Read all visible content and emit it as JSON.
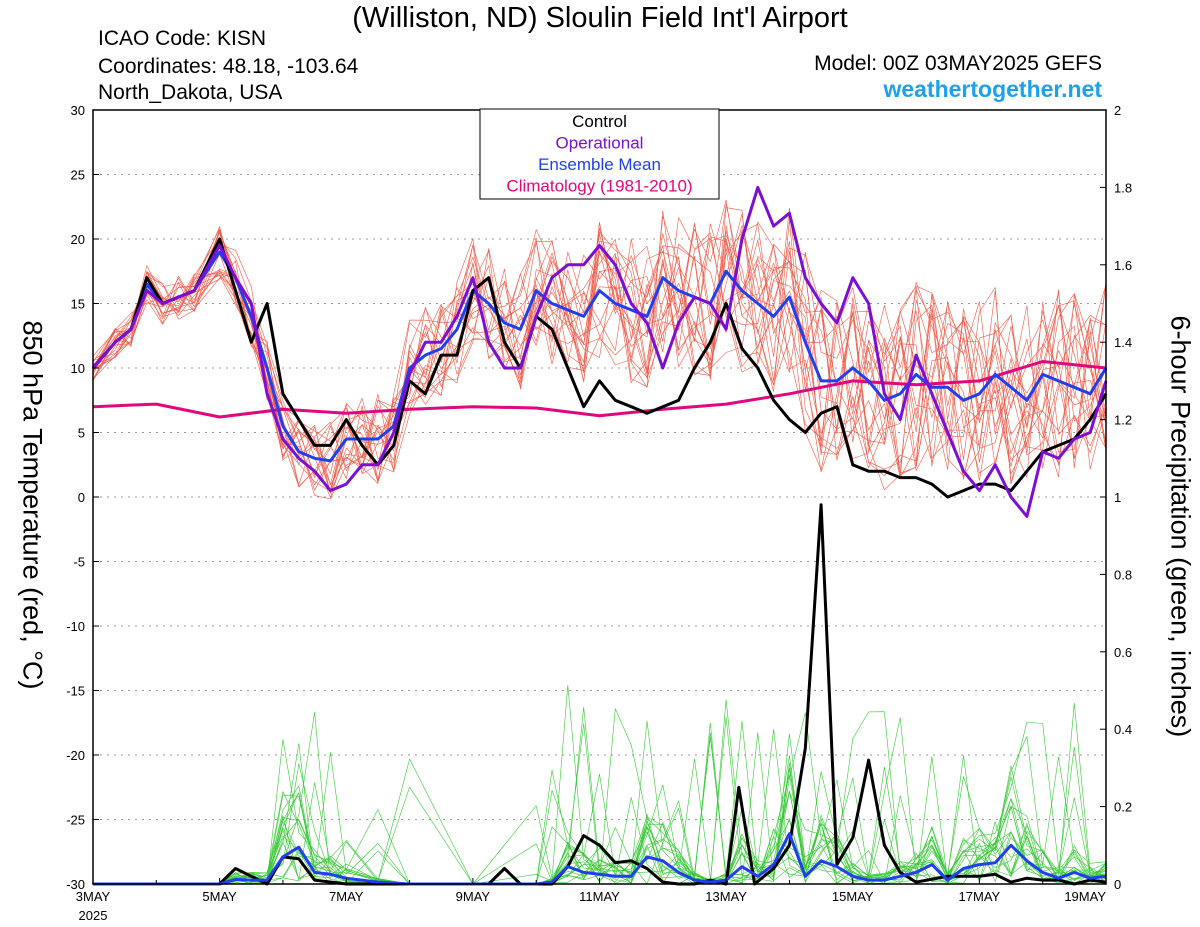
{
  "header": {
    "title": "(Williston, ND) Sloulin Field Int'l Airport",
    "icao": "ICAO Code: KISN",
    "coordinates": "Coordinates: 48.18, -103.64",
    "region": "North_Dakota, USA",
    "model": "Model: 00Z 03MAY2025 GEFS",
    "site": "weathertogether.net"
  },
  "colors": {
    "control": "#000000",
    "operational": "#7b0fd6",
    "ensemble_mean": "#2040f0",
    "climatology": "#e2077e",
    "members_temp": "#f05a4a",
    "members_precip": "#37c837",
    "site": "#1ea0f0"
  },
  "chart_data": {
    "type": "line",
    "title": "(Williston, ND) Sloulin Field Int'l Airport",
    "ylabel": "850 hPa Temperature (red, °C)",
    "y2label": "6-hour Precipitation (green, inches)",
    "xlim": [
      0,
      16
    ],
    "ylim": [
      -30,
      30
    ],
    "y2lim": [
      0,
      2
    ],
    "y_ticks": [
      30,
      25,
      20,
      15,
      10,
      5,
      0,
      -5,
      -10,
      -15,
      -20,
      -25,
      -30
    ],
    "y2_ticks": [
      2,
      1.8,
      1.6,
      1.4,
      1.2,
      1,
      0.8,
      0.6,
      0.4,
      0.2,
      0
    ],
    "x_ticks": [
      {
        "x": 0,
        "label": "3MAY",
        "sub": "2025"
      },
      {
        "x": 2,
        "label": "5MAY"
      },
      {
        "x": 4,
        "label": "7MAY"
      },
      {
        "x": 6,
        "label": "9MAY"
      },
      {
        "x": 8,
        "label": "11MAY"
      },
      {
        "x": 10,
        "label": "13MAY"
      },
      {
        "x": 12,
        "label": "15MAY"
      },
      {
        "x": 14,
        "label": "17MAY"
      },
      {
        "x": 16,
        "label": "19MAY"
      }
    ],
    "grid": true,
    "legend": {
      "placement": "top-center",
      "entries": [
        {
          "label": "Control",
          "color": "#000000"
        },
        {
          "label": "Operational",
          "color": "#7b0fd6"
        },
        {
          "label": "Ensemble Mean",
          "color": "#2040f0"
        },
        {
          "label": "Climatology (1981-2010)",
          "color": "#e2077e"
        }
      ]
    },
    "temperature": {
      "control": [
        [
          0,
          10
        ],
        [
          0.35,
          12
        ],
        [
          0.6,
          13
        ],
        [
          0.85,
          17
        ],
        [
          1.1,
          15
        ],
        [
          1.35,
          15.5
        ],
        [
          1.6,
          16
        ],
        [
          2,
          20
        ],
        [
          2.25,
          16
        ],
        [
          2.5,
          12
        ],
        [
          2.75,
          15
        ],
        [
          3,
          8
        ],
        [
          3.25,
          6
        ],
        [
          3.5,
          4
        ],
        [
          3.75,
          4
        ],
        [
          4,
          6
        ],
        [
          4.25,
          4
        ],
        [
          4.5,
          2.5
        ],
        [
          4.75,
          4
        ],
        [
          5,
          9
        ],
        [
          5.25,
          8
        ],
        [
          5.5,
          11
        ],
        [
          5.75,
          11
        ],
        [
          6,
          16
        ],
        [
          6.25,
          17
        ],
        [
          6.5,
          12
        ],
        [
          6.75,
          10
        ],
        [
          7,
          14
        ],
        [
          7.25,
          13
        ],
        [
          7.5,
          10
        ],
        [
          7.75,
          7
        ],
        [
          8,
          9
        ],
        [
          8.25,
          7.5
        ],
        [
          8.5,
          7
        ],
        [
          8.75,
          6.5
        ],
        [
          9,
          7
        ],
        [
          9.25,
          7.5
        ],
        [
          9.5,
          10
        ],
        [
          9.75,
          12
        ],
        [
          10,
          15
        ],
        [
          10.25,
          11.5
        ],
        [
          10.5,
          10
        ],
        [
          10.75,
          7.5
        ],
        [
          11,
          6
        ],
        [
          11.25,
          5
        ],
        [
          11.5,
          6.5
        ],
        [
          11.75,
          7
        ],
        [
          12,
          2.5
        ],
        [
          12.25,
          2
        ],
        [
          12.5,
          2
        ],
        [
          12.75,
          1.5
        ],
        [
          13,
          1.5
        ],
        [
          13.25,
          1
        ],
        [
          13.5,
          0
        ],
        [
          13.75,
          0.5
        ],
        [
          14,
          1
        ],
        [
          14.25,
          1
        ],
        [
          14.5,
          0.5
        ],
        [
          14.75,
          2
        ],
        [
          15,
          3.5
        ],
        [
          15.25,
          4
        ],
        [
          15.5,
          4.5
        ],
        [
          15.75,
          6
        ],
        [
          16,
          8
        ]
      ],
      "operational": [
        [
          0,
          10
        ],
        [
          0.35,
          12
        ],
        [
          0.6,
          13
        ],
        [
          0.85,
          16
        ],
        [
          1.1,
          15
        ],
        [
          1.35,
          15.5
        ],
        [
          1.6,
          16
        ],
        [
          2,
          19.5
        ],
        [
          2.25,
          17
        ],
        [
          2.5,
          15
        ],
        [
          2.75,
          8
        ],
        [
          3,
          4.5
        ],
        [
          3.25,
          3
        ],
        [
          3.5,
          2
        ],
        [
          3.75,
          0.5
        ],
        [
          4,
          1
        ],
        [
          4.25,
          2.5
        ],
        [
          4.5,
          2.5
        ],
        [
          4.75,
          5
        ],
        [
          5,
          9.5
        ],
        [
          5.25,
          12
        ],
        [
          5.5,
          12
        ],
        [
          5.75,
          14
        ],
        [
          6,
          17
        ],
        [
          6.25,
          12
        ],
        [
          6.5,
          10
        ],
        [
          6.75,
          10
        ],
        [
          7,
          14
        ],
        [
          7.25,
          17
        ],
        [
          7.5,
          18
        ],
        [
          7.75,
          18
        ],
        [
          8,
          19.5
        ],
        [
          8.25,
          18
        ],
        [
          8.5,
          15
        ],
        [
          8.75,
          13.5
        ],
        [
          9,
          10
        ],
        [
          9.25,
          13.5
        ],
        [
          9.5,
          15.5
        ],
        [
          9.75,
          15
        ],
        [
          10,
          13
        ],
        [
          10.25,
          20
        ],
        [
          10.5,
          24
        ],
        [
          10.75,
          21
        ],
        [
          11,
          22
        ],
        [
          11.25,
          17
        ],
        [
          11.5,
          15
        ],
        [
          11.75,
          13.5
        ],
        [
          12,
          17
        ],
        [
          12.25,
          15
        ],
        [
          12.5,
          8
        ],
        [
          12.75,
          6
        ],
        [
          13,
          11
        ],
        [
          13.25,
          8
        ],
        [
          13.5,
          5
        ],
        [
          13.75,
          2
        ],
        [
          14,
          0.5
        ],
        [
          14.25,
          2.5
        ],
        [
          14.5,
          0
        ],
        [
          14.75,
          -1.5
        ],
        [
          15,
          3.5
        ],
        [
          15.25,
          3
        ],
        [
          15.5,
          4.5
        ],
        [
          15.75,
          5
        ],
        [
          16,
          9
        ]
      ],
      "ensemble_mean": [
        [
          0,
          10
        ],
        [
          0.35,
          12
        ],
        [
          0.6,
          13
        ],
        [
          0.85,
          16.5
        ],
        [
          1.1,
          15
        ],
        [
          1.35,
          15.5
        ],
        [
          1.6,
          16
        ],
        [
          2,
          19
        ],
        [
          2.25,
          17
        ],
        [
          2.5,
          14
        ],
        [
          2.75,
          10
        ],
        [
          3,
          5.5
        ],
        [
          3.25,
          3.5
        ],
        [
          3.5,
          3
        ],
        [
          3.75,
          2.8
        ],
        [
          4,
          4.5
        ],
        [
          4.25,
          4.5
        ],
        [
          4.5,
          4.5
        ],
        [
          4.75,
          5.5
        ],
        [
          5,
          10
        ],
        [
          5.25,
          11
        ],
        [
          5.5,
          11.5
        ],
        [
          5.75,
          13
        ],
        [
          6,
          16
        ],
        [
          6.25,
          15
        ],
        [
          6.5,
          13.5
        ],
        [
          6.75,
          13
        ],
        [
          7,
          16
        ],
        [
          7.25,
          15
        ],
        [
          7.5,
          14.5
        ],
        [
          7.75,
          14
        ],
        [
          8,
          16
        ],
        [
          8.25,
          15
        ],
        [
          8.5,
          14.5
        ],
        [
          8.75,
          14
        ],
        [
          9,
          17
        ],
        [
          9.25,
          16
        ],
        [
          9.5,
          15.5
        ],
        [
          9.75,
          15
        ],
        [
          10,
          17.5
        ],
        [
          10.25,
          16
        ],
        [
          10.5,
          15
        ],
        [
          10.75,
          14
        ],
        [
          11,
          15.5
        ],
        [
          11.25,
          12
        ],
        [
          11.5,
          9
        ],
        [
          11.75,
          9
        ],
        [
          12,
          10
        ],
        [
          12.25,
          9
        ],
        [
          12.5,
          7.5
        ],
        [
          12.75,
          8
        ],
        [
          13,
          9.5
        ],
        [
          13.25,
          8.5
        ],
        [
          13.5,
          8.5
        ],
        [
          13.75,
          7.5
        ],
        [
          14,
          8
        ],
        [
          14.25,
          9.5
        ],
        [
          14.5,
          8.5
        ],
        [
          14.75,
          7.5
        ],
        [
          15,
          9.5
        ],
        [
          15.25,
          9
        ],
        [
          15.5,
          8.5
        ],
        [
          15.75,
          8
        ],
        [
          16,
          10
        ]
      ],
      "climatology": [
        [
          0,
          7
        ],
        [
          1,
          7.2
        ],
        [
          2,
          6.2
        ],
        [
          3,
          6.8
        ],
        [
          4,
          6.5
        ],
        [
          5,
          6.8
        ],
        [
          6,
          7
        ],
        [
          7,
          6.9
        ],
        [
          8,
          6.3
        ],
        [
          9,
          6.8
        ],
        [
          10,
          7.2
        ],
        [
          11,
          8
        ],
        [
          12,
          9
        ],
        [
          13,
          8.7
        ],
        [
          14,
          9
        ],
        [
          15,
          10.5
        ],
        [
          16,
          10
        ]
      ]
    },
    "precipitation": {
      "control": [
        [
          0,
          0
        ],
        [
          1,
          0
        ],
        [
          2,
          0
        ],
        [
          2.25,
          0.04
        ],
        [
          2.5,
          0.02
        ],
        [
          2.75,
          0
        ],
        [
          3,
          0.07
        ],
        [
          3.25,
          0.065
        ],
        [
          3.5,
          0.01
        ],
        [
          4,
          0
        ],
        [
          5,
          0
        ],
        [
          6,
          0
        ],
        [
          6.25,
          0
        ],
        [
          6.5,
          0.04
        ],
        [
          6.75,
          0
        ],
        [
          7,
          0
        ],
        [
          7.25,
          0
        ],
        [
          7.5,
          0.045
        ],
        [
          7.75,
          0.125
        ],
        [
          8,
          0.1
        ],
        [
          8.25,
          0.055
        ],
        [
          8.5,
          0.06
        ],
        [
          8.75,
          0.04
        ],
        [
          9,
          0.005
        ],
        [
          9.25,
          0
        ],
        [
          9.5,
          0
        ],
        [
          9.75,
          0.01
        ],
        [
          10,
          0
        ],
        [
          10.2,
          0.25
        ],
        [
          10.45,
          0
        ],
        [
          10.75,
          0.04
        ],
        [
          11,
          0.1
        ],
        [
          11.25,
          0.35
        ],
        [
          11.5,
          0.98
        ],
        [
          11.75,
          0.05
        ],
        [
          12,
          0.12
        ],
        [
          12.25,
          0.32
        ],
        [
          12.5,
          0.1
        ],
        [
          12.75,
          0.03
        ],
        [
          13,
          0.005
        ],
        [
          13.5,
          0.02
        ],
        [
          14,
          0.02
        ],
        [
          14.25,
          0.025
        ],
        [
          14.5,
          0.005
        ],
        [
          14.75,
          0.015
        ],
        [
          15,
          0.01
        ],
        [
          15.25,
          0.01
        ],
        [
          15.5,
          0
        ],
        [
          15.75,
          0.01
        ],
        [
          16,
          0.005
        ]
      ],
      "ensemble_mean": [
        [
          0,
          0
        ],
        [
          1,
          0
        ],
        [
          2,
          0
        ],
        [
          2.25,
          0.012
        ],
        [
          2.5,
          0.01
        ],
        [
          2.75,
          0.01
        ],
        [
          3,
          0.07
        ],
        [
          3.25,
          0.095
        ],
        [
          3.5,
          0.03
        ],
        [
          3.75,
          0.025
        ],
        [
          4,
          0.015
        ],
        [
          4.5,
          0.005
        ],
        [
          5,
          0
        ],
        [
          6,
          0
        ],
        [
          7,
          0
        ],
        [
          7.25,
          0.005
        ],
        [
          7.5,
          0.045
        ],
        [
          7.75,
          0.03
        ],
        [
          8,
          0.025
        ],
        [
          8.25,
          0.02
        ],
        [
          8.5,
          0.02
        ],
        [
          8.75,
          0.07
        ],
        [
          9,
          0.06
        ],
        [
          9.25,
          0.03
        ],
        [
          9.5,
          0.01
        ],
        [
          9.75,
          0.005
        ],
        [
          10,
          0.01
        ],
        [
          10.25,
          0.045
        ],
        [
          10.5,
          0.02
        ],
        [
          10.75,
          0.05
        ],
        [
          11,
          0.13
        ],
        [
          11.25,
          0.02
        ],
        [
          11.5,
          0.06
        ],
        [
          11.75,
          0.045
        ],
        [
          12,
          0.02
        ],
        [
          12.25,
          0.01
        ],
        [
          12.5,
          0.01
        ],
        [
          12.75,
          0.02
        ],
        [
          13,
          0.03
        ],
        [
          13.25,
          0.05
        ],
        [
          13.5,
          0.01
        ],
        [
          13.75,
          0.04
        ],
        [
          14,
          0.05
        ],
        [
          14.25,
          0.055
        ],
        [
          14.5,
          0.1
        ],
        [
          14.75,
          0.06
        ],
        [
          15,
          0.03
        ],
        [
          15.25,
          0.015
        ],
        [
          15.5,
          0.03
        ],
        [
          15.75,
          0.015
        ],
        [
          16,
          0.02
        ]
      ]
    }
  }
}
